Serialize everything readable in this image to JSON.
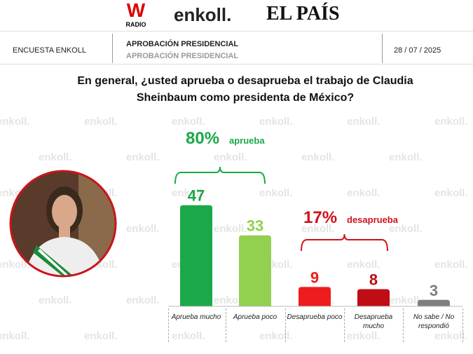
{
  "header": {
    "logos": [
      "W",
      "RADIO",
      "enkoll.",
      "EL PAÍS"
    ],
    "survey": "ENCUESTA ENKOLL",
    "topic": "APROBACIÓN PRESIDENCIAL",
    "topic_sub": "APROBACIÓN PRESIDENCIAL",
    "date": "28 / 07 / 2025"
  },
  "watermark": "enkoll.",
  "chart_data": {
    "type": "bar",
    "title": "En general, ¿usted aprueba o desaprueba el trabajo de Claudia Sheinbaum como presidenta de México?",
    "categories": [
      "Aprueba mucho",
      "Aprueba poco",
      "Desaprueba poco",
      "Desaprueba mucho",
      "No sabe / No respondió"
    ],
    "values": [
      47,
      33,
      9,
      8,
      3
    ],
    "colors": [
      "#1aa84a",
      "#92d050",
      "#ee1c1c",
      "#c00c14",
      "#7f7f7f"
    ],
    "annotations": [
      {
        "value": "80%",
        "label": "aprueba",
        "color": "#1aa84a"
      },
      {
        "value": "17%",
        "label": "desaprueba",
        "color": "#d01218"
      }
    ]
  }
}
